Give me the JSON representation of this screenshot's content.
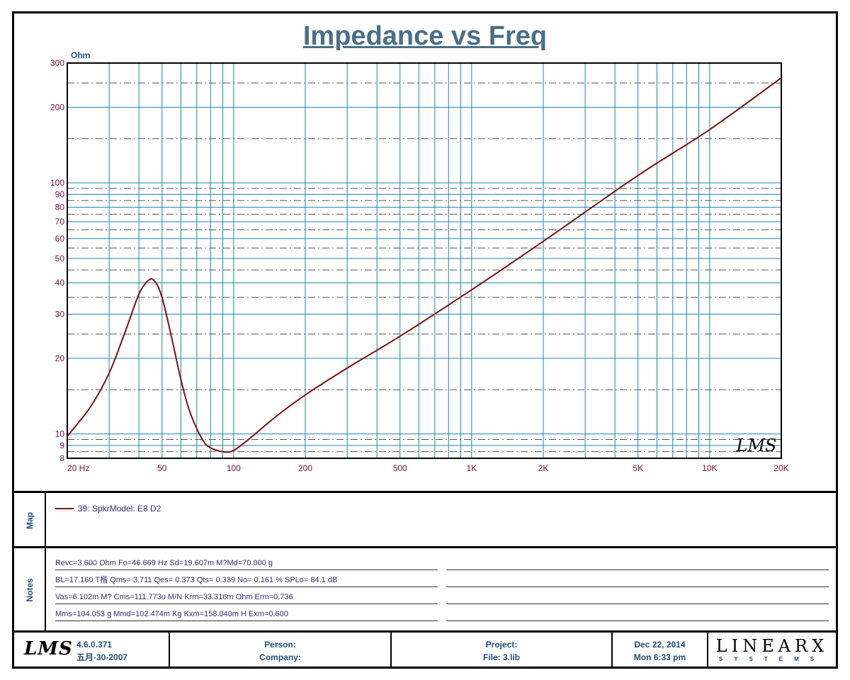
{
  "chart_data": {
    "type": "line",
    "title": "Impedance vs Freq",
    "ylabel": "Ohm",
    "xscale": "log",
    "yscale": "log",
    "xlim": [
      20,
      20000
    ],
    "ylim": [
      8,
      300
    ],
    "grid": true,
    "x_tick_labels": [
      {
        "value": 20,
        "label": "20  Hz"
      },
      {
        "value": 50,
        "label": "50"
      },
      {
        "value": 100,
        "label": "100"
      },
      {
        "value": 200,
        "label": "200"
      },
      {
        "value": 500,
        "label": "500"
      },
      {
        "value": 1000,
        "label": "1K"
      },
      {
        "value": 2000,
        "label": "2K"
      },
      {
        "value": 5000,
        "label": "5K"
      },
      {
        "value": 10000,
        "label": "10K"
      },
      {
        "value": 20000,
        "label": "20K"
      }
    ],
    "y_tick_labels": [
      {
        "value": 300,
        "label": "300"
      },
      {
        "value": 200,
        "label": "200"
      },
      {
        "value": 100,
        "label": "100"
      },
      {
        "value": 90,
        "label": "90"
      },
      {
        "value": 80,
        "label": "80"
      },
      {
        "value": 70,
        "label": "70"
      },
      {
        "value": 60,
        "label": "60"
      },
      {
        "value": 50,
        "label": "50"
      },
      {
        "value": 40,
        "label": "40"
      },
      {
        "value": 30,
        "label": "30"
      },
      {
        "value": 20,
        "label": "20"
      },
      {
        "value": 10,
        "label": "10"
      },
      {
        "value": 9,
        "label": "9"
      },
      {
        "value": 8,
        "label": "8"
      }
    ],
    "series": [
      {
        "name": "39: SpkrModel: E8  D2",
        "color": "#7a1010",
        "x": [
          20,
          25,
          30,
          35,
          40,
          44,
          46.7,
          50,
          55,
          60,
          65,
          70,
          75,
          80,
          90,
          100,
          120,
          150,
          200,
          300,
          500,
          1000,
          2000,
          5000,
          10000,
          20000
        ],
        "y": [
          9.8,
          12.8,
          17.5,
          25.5,
          36,
          41,
          40.5,
          35,
          24,
          16.5,
          12.5,
          10.5,
          9.3,
          8.8,
          8.5,
          8.6,
          9.8,
          11.7,
          14.3,
          18.3,
          24.5,
          37.5,
          58.5,
          107,
          163,
          262
        ]
      }
    ]
  },
  "map": {
    "label": "Map",
    "legend_entry": "39: SpkrModel: E8  D2",
    "legend_color": "#7a1010"
  },
  "notes": {
    "label": "Notes",
    "lines": [
      "Revc=3.600 Ohm  Fo=46.669 Hz  Sd=19.607m M?Md=70.000 g",
      "BL=17.160 T楷  Qms= 3.711  Qes= 0.373  Qts= 0.339  No= 0.161 %  SPLo= 84.1 dB",
      "Vas=6.102m M? Cms=111.773u M/N  Krm=33.316m Ohm  Erm=0.736",
      "Mms=104.053 g  Mmd=102.474m Kg  Kxm=158.040m H  Exm=0.600"
    ]
  },
  "footer": {
    "lms_logo": "LMS",
    "version": "4.6.0.371",
    "version_date": "五月-30-2007",
    "person": "Person:",
    "company": "Company:",
    "project": "Project:",
    "file": "File: 3.lib",
    "date": "Dec 22, 2014",
    "time": "Mon  6:33 pm",
    "brand": "LINEARX",
    "brand_sub": "SYSTEMS"
  },
  "watermark": "LMS",
  "colors": {
    "title": "#4a6f88",
    "grid_major": "#1a86a6",
    "grid_minor": "#555555",
    "axis_label": "#7a1040",
    "curve": "#7a1010"
  }
}
